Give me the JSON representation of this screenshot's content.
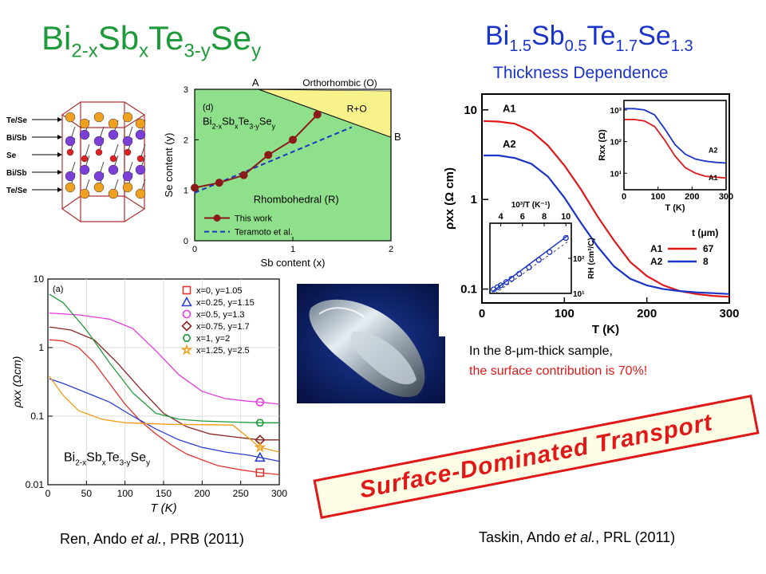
{
  "slide": {
    "title_left_parts": [
      "Bi",
      "2-x",
      "Sb",
      "x",
      "Te",
      "3-y",
      "Se",
      "y"
    ],
    "title_right_parts": [
      "Bi",
      "1.5",
      "Sb",
      "0.5",
      "Te",
      "1.7",
      "Se",
      "1.3"
    ],
    "subtitle_right": "Thickness Dependence",
    "note_line1": "In the 8-μm-thick sample,",
    "note_line2": "the surface contribution is 70%!",
    "callout": "Surface-Dominated Transport",
    "citation_left_pre": "Ren, Ando ",
    "citation_left_em": "et al.",
    "citation_left_post": ", PRB (2011)",
    "citation_right_pre": "Taskin, Ando ",
    "citation_right_em": "et al.",
    "citation_right_post": ", PRL (2011)",
    "colors": {
      "green_title": "#1f9a3a",
      "blue_title": "#1a33c8",
      "accent_red": "#e01818",
      "callout_bg": "#fffce6"
    }
  },
  "crystal": {
    "labels": [
      "Te/Se",
      "Bi/Sb",
      "Se",
      "Bi/Sb",
      "Te/Se"
    ]
  },
  "chart_data": [
    {
      "id": "phase-diagram",
      "type": "line",
      "panel_label": "(d)",
      "xlabel": "Sb content (x)",
      "ylabel": "Se content (y)",
      "xlim": [
        0,
        2
      ],
      "ylim": [
        0,
        3
      ],
      "xticks": [
        0,
        1,
        2
      ],
      "yticks": [
        0,
        1,
        2,
        3
      ],
      "region_labels": [
        "Orthorhombic (O)",
        "R+O",
        "Rhombohedral (R)",
        "A",
        "B"
      ],
      "inset_formula_parts": [
        "Bi",
        "2-x",
        "Sb",
        "x",
        "Te",
        "3-y",
        "Se",
        "y"
      ],
      "series": [
        {
          "name": "This work",
          "x": [
            0,
            0.25,
            0.5,
            0.75,
            1.0,
            1.25
          ],
          "y": [
            1.05,
            1.15,
            1.3,
            1.7,
            2.0,
            2.5
          ]
        },
        {
          "name": "Teramoto et al.",
          "x": [
            0,
            1.6
          ],
          "y": [
            0.95,
            2.25
          ]
        }
      ],
      "boundary_O": [
        [
          0.65,
          3.0
        ],
        [
          2.0,
          2.97
        ]
      ],
      "boundary_RO": [
        [
          0.65,
          3.0
        ],
        [
          2.0,
          2.05
        ]
      ]
    },
    {
      "id": "rho-vs-T-composition",
      "type": "line",
      "panel_label": "(a)",
      "xlabel": "T (K)",
      "ylabel": "ρxx (Ωcm)",
      "log_y": true,
      "xlim": [
        0,
        300
      ],
      "ylim": [
        0.01,
        10
      ],
      "xticks": [
        0,
        50,
        100,
        150,
        200,
        250,
        300
      ],
      "ytick_labels": [
        "10",
        "1",
        "0.1",
        "0.01"
      ],
      "formula_parts": [
        "Bi",
        "2-x",
        "Sb",
        "x",
        "Te",
        "3-y",
        "Se",
        "y"
      ],
      "series": [
        {
          "name": "x=0, y=1.05",
          "color": "#e3342f",
          "marker": "square",
          "x": [
            2,
            20,
            40,
            60,
            80,
            100,
            120,
            140,
            160,
            180,
            200,
            220,
            250,
            275,
            300
          ],
          "y": [
            1.3,
            1.25,
            1.0,
            0.6,
            0.3,
            0.15,
            0.085,
            0.055,
            0.038,
            0.028,
            0.023,
            0.019,
            0.0165,
            0.015,
            0.014
          ]
        },
        {
          "name": "x=0.25, y=1.15",
          "color": "#2b3fd6",
          "marker": "triangle",
          "x": [
            2,
            20,
            50,
            80,
            110,
            140,
            170,
            200,
            230,
            260,
            275,
            300
          ],
          "y": [
            0.35,
            0.3,
            0.22,
            0.16,
            0.1,
            0.065,
            0.045,
            0.035,
            0.03,
            0.027,
            0.025,
            0.022
          ]
        },
        {
          "name": "x=0.5, y=1.3",
          "color": "#e83ae0",
          "marker": "circle",
          "x": [
            2,
            40,
            80,
            110,
            140,
            170,
            200,
            230,
            260,
            275,
            300
          ],
          "y": [
            3.2,
            3.0,
            2.6,
            1.9,
            0.9,
            0.4,
            0.23,
            0.18,
            0.165,
            0.16,
            0.15
          ]
        },
        {
          "name": "x=0.75, y=1.7",
          "color": "#8b2323",
          "marker": "diamond",
          "x": [
            2,
            30,
            60,
            90,
            120,
            150,
            180,
            210,
            240,
            275,
            300
          ],
          "y": [
            2.0,
            1.8,
            1.3,
            0.6,
            0.25,
            0.11,
            0.07,
            0.055,
            0.05,
            0.045,
            0.045
          ]
        },
        {
          "name": "x=1, y=2",
          "color": "#1f9a3a",
          "marker": "hexagon",
          "x": [
            2,
            20,
            50,
            80,
            110,
            140,
            170,
            200,
            240,
            275,
            300
          ],
          "y": [
            6.0,
            4.5,
            1.8,
            0.6,
            0.22,
            0.11,
            0.09,
            0.085,
            0.082,
            0.08,
            0.08
          ]
        },
        {
          "name": "x=1.25, y=2.5",
          "color": "#f39c12",
          "marker": "star",
          "x": [
            2,
            20,
            40,
            70,
            100,
            130,
            160,
            200,
            240,
            275,
            300
          ],
          "y": [
            0.38,
            0.2,
            0.12,
            0.09,
            0.08,
            0.078,
            0.076,
            0.075,
            0.074,
            0.035,
            0.03
          ]
        }
      ]
    },
    {
      "id": "rho-vs-T-thickness",
      "type": "line",
      "xlabel": "T (K)",
      "ylabel": "ρxx (Ω cm)",
      "log_y": true,
      "xlim": [
        0,
        300
      ],
      "ylim": [
        0.07,
        15
      ],
      "xticks": [
        0,
        100,
        200,
        300
      ],
      "ytick_labels": [
        "10",
        "1",
        "0.1"
      ],
      "curve_labels": [
        "A1",
        "A2"
      ],
      "legend_title": "t (μm)",
      "legend": [
        {
          "name": "A1",
          "value": "67",
          "color": "#e01818"
        },
        {
          "name": "A2",
          "value": "8",
          "color": "#1a33c8"
        }
      ],
      "series": [
        {
          "name": "A1",
          "color": "#e01818",
          "x": [
            2,
            20,
            40,
            60,
            80,
            100,
            120,
            140,
            160,
            180,
            200,
            220,
            240,
            260,
            280,
            300
          ],
          "y": [
            7.5,
            7.4,
            7.0,
            5.8,
            4.0,
            2.4,
            1.3,
            0.65,
            0.35,
            0.2,
            0.14,
            0.11,
            0.095,
            0.088,
            0.084,
            0.082
          ]
        },
        {
          "name": "A2",
          "color": "#1a33c8",
          "x": [
            2,
            20,
            40,
            60,
            80,
            100,
            120,
            140,
            160,
            180,
            200,
            220,
            240,
            260,
            280,
            300
          ],
          "y": [
            3.1,
            3.1,
            2.9,
            2.5,
            1.8,
            1.05,
            0.55,
            0.3,
            0.18,
            0.13,
            0.11,
            0.1,
            0.095,
            0.092,
            0.09,
            0.088
          ]
        }
      ]
    },
    {
      "id": "inset-Rxx",
      "type": "line",
      "xlabel": "T (K)",
      "ylabel": "Rxx (Ω)",
      "log_y": true,
      "xlim": [
        0,
        300
      ],
      "ylim": [
        3,
        2000
      ],
      "xticks": [
        0,
        100,
        200,
        300
      ],
      "ytick_labels": [
        "10³",
        "10²",
        "10¹"
      ],
      "curve_labels": [
        "A2",
        "A1"
      ],
      "series": [
        {
          "name": "A2",
          "color": "#1a33c8",
          "x": [
            2,
            30,
            60,
            90,
            120,
            150,
            180,
            210,
            240,
            270,
            300
          ],
          "y": [
            1100,
            1100,
            1000,
            700,
            250,
            80,
            40,
            28,
            24,
            22,
            21
          ]
        },
        {
          "name": "A1",
          "color": "#e01818",
          "x": [
            2,
            30,
            60,
            90,
            120,
            150,
            180,
            210,
            240,
            270,
            300
          ],
          "y": [
            500,
            500,
            450,
            300,
            110,
            35,
            15,
            10,
            8,
            7.5,
            7
          ]
        }
      ]
    },
    {
      "id": "inset-Hall",
      "type": "scatter",
      "xlabel": "10³/T (K⁻¹)",
      "ylabel": "RH (cm³/C)",
      "log_y": true,
      "xlim": [
        3,
        10.5
      ],
      "ylim": [
        10,
        1000
      ],
      "xticks": [
        4,
        6,
        8,
        10
      ],
      "ytick_labels": [
        "10²",
        "10¹"
      ],
      "series": [
        {
          "name": "data",
          "color": "#1a33c8",
          "marker": "circle",
          "x": [
            3.35,
            3.7,
            4.0,
            4.5,
            5.0,
            5.7,
            6.6,
            7.5,
            8.5,
            10.0
          ],
          "y": [
            13,
            15,
            17,
            21,
            26,
            36,
            55,
            90,
            150,
            380
          ]
        },
        {
          "name": "fit",
          "color": "#1a33c8",
          "x": [
            3.2,
            10.2
          ],
          "y": [
            11,
            450
          ]
        },
        {
          "name": "fit-dashed",
          "color": "#444444",
          "x": [
            3.5,
            10.2
          ],
          "y": [
            10,
            300
          ]
        }
      ]
    }
  ]
}
